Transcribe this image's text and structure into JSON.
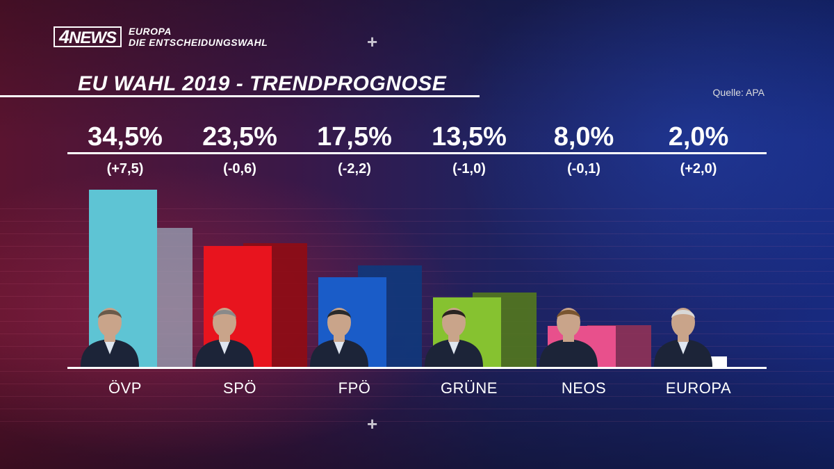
{
  "header": {
    "logo_num": "4",
    "logo_word": "NEWS",
    "line1": "EUROPA",
    "line2": "DIE ENTSCHEIDUNGSWAHL"
  },
  "title": "EU WAHL 2019 - TRENDPROGNOSE",
  "source": "Quelle: APA",
  "decor": {
    "plus_symbol": "+"
  },
  "colors": {
    "ÖVP": "#5ec4d4",
    "SPÖ": "#e8141e",
    "FPÖ": "#1a5cc8",
    "GRÜNE": "#86c230",
    "NEOS": "#e8508c",
    "EUROPA": "#ffffff"
  },
  "chart_data": {
    "type": "bar",
    "title": "EU WAHL 2019 - TRENDPROGNOSE",
    "categories": [
      "ÖVP",
      "SPÖ",
      "FPÖ",
      "GRÜNE",
      "NEOS",
      "EUROPA"
    ],
    "series": [
      {
        "values": [
          34.5,
          23.5,
          17.5,
          13.5,
          8.0,
          2.0
        ]
      },
      {
        "values": [
          27.0,
          24.1,
          19.7,
          14.5,
          8.1,
          0
        ]
      }
    ],
    "value_labels": [
      "34,5%",
      "23,5%",
      "17,5%",
      "13,5%",
      "8,0%",
      "2,0%"
    ],
    "change_labels": [
      "(+7,5)",
      "(-0,6)",
      "(-2,2)",
      "(-1,0)",
      "(-0,1)",
      "(+2,0)"
    ],
    "ylim": [
      0,
      35
    ],
    "grid": false,
    "legend": "none"
  }
}
